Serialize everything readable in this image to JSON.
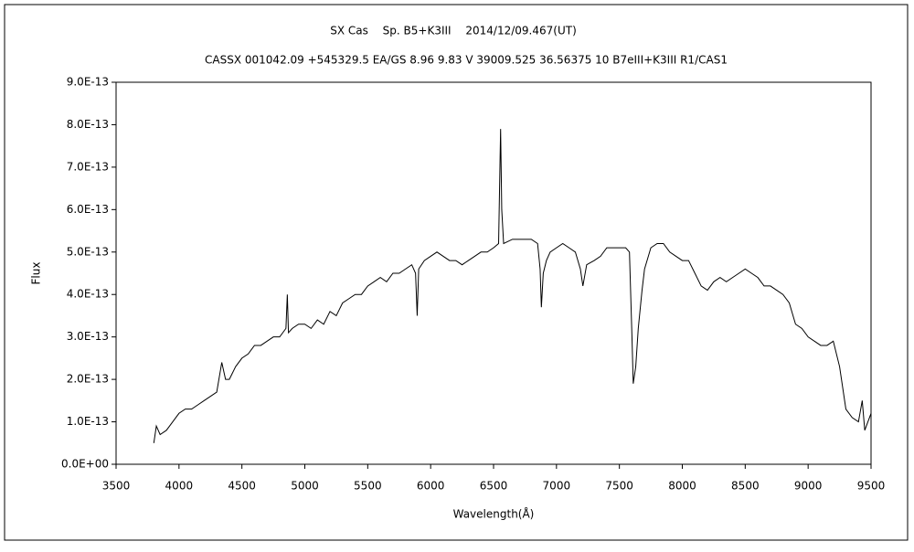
{
  "chart_data": {
    "type": "line",
    "title": "SX Cas　 Sp. B5+K3III　 2014/12/09.467(UT)",
    "subtitle": "CASSX 001042.09 +545329.5 EA/GS 8.96 9.83 V 39009.525 36.56375 10 B7eIII+K3III R1/CAS1",
    "xlabel": "Wavelength(Å)",
    "ylabel": "Flux",
    "xlim": [
      3500,
      9500
    ],
    "xticks": [
      3500,
      4000,
      4500,
      5000,
      5500,
      6000,
      6500,
      7000,
      7500,
      8000,
      8500,
      9000,
      9500
    ],
    "ylim": [
      0,
      9e-13
    ],
    "yticks": [
      {
        "value": 0,
        "label": "0.0E+00"
      },
      {
        "value": 1e-13,
        "label": "1.0E-13"
      },
      {
        "value": 2e-13,
        "label": "2.0E-13"
      },
      {
        "value": 3e-13,
        "label": "3.0E-13"
      },
      {
        "value": 4e-13,
        "label": "4.0E-13"
      },
      {
        "value": 5e-13,
        "label": "5.0E-13"
      },
      {
        "value": 6e-13,
        "label": "6.0E-13"
      },
      {
        "value": 7e-13,
        "label": "7.0E-13"
      },
      {
        "value": 8e-13,
        "label": "8.0E-13"
      },
      {
        "value": 9e-13,
        "label": "9.0E-13"
      }
    ],
    "grid": false,
    "color": "#000000",
    "x": [
      3800,
      3820,
      3850,
      3900,
      3950,
      4000,
      4050,
      4100,
      4150,
      4200,
      4250,
      4300,
      4340,
      4370,
      4400,
      4450,
      4500,
      4550,
      4600,
      4650,
      4700,
      4750,
      4800,
      4850,
      4861,
      4870,
      4900,
      4950,
      5000,
      5050,
      5100,
      5150,
      5200,
      5250,
      5300,
      5350,
      5400,
      5450,
      5500,
      5550,
      5600,
      5650,
      5700,
      5750,
      5800,
      5850,
      5880,
      5893,
      5905,
      5950,
      6000,
      6050,
      6100,
      6150,
      6200,
      6250,
      6300,
      6350,
      6400,
      6450,
      6500,
      6540,
      6556,
      6565,
      6580,
      6650,
      6700,
      6750,
      6800,
      6850,
      6870,
      6880,
      6895,
      6920,
      6950,
      7000,
      7050,
      7100,
      7150,
      7190,
      7210,
      7240,
      7300,
      7350,
      7400,
      7450,
      7500,
      7550,
      7580,
      7600,
      7610,
      7630,
      7650,
      7680,
      7700,
      7750,
      7800,
      7850,
      7900,
      7950,
      8000,
      8050,
      8100,
      8150,
      8200,
      8250,
      8300,
      8350,
      8400,
      8450,
      8500,
      8550,
      8600,
      8650,
      8700,
      8750,
      8800,
      8850,
      8900,
      8950,
      9000,
      9050,
      9100,
      9150,
      9200,
      9250,
      9300,
      9350,
      9400,
      9430,
      9450,
      9500
    ],
    "values": [
      5e-14,
      9e-14,
      7e-14,
      8e-14,
      1e-13,
      1.2e-13,
      1.3e-13,
      1.3e-13,
      1.4e-13,
      1.5e-13,
      1.6e-13,
      1.7e-13,
      2.4e-13,
      2e-13,
      2e-13,
      2.3e-13,
      2.5e-13,
      2.6e-13,
      2.8e-13,
      2.8e-13,
      2.9e-13,
      3e-13,
      3e-13,
      3.2e-13,
      4e-13,
      3.1e-13,
      3.2e-13,
      3.3e-13,
      3.3e-13,
      3.2e-13,
      3.4e-13,
      3.3e-13,
      3.6e-13,
      3.5e-13,
      3.8e-13,
      3.9e-13,
      4e-13,
      4e-13,
      4.2e-13,
      4.3e-13,
      4.4e-13,
      4.3e-13,
      4.5e-13,
      4.5e-13,
      4.6e-13,
      4.7e-13,
      4.5e-13,
      3.5e-13,
      4.6e-13,
      4.8e-13,
      4.9e-13,
      5e-13,
      4.9e-13,
      4.8e-13,
      4.8e-13,
      4.7e-13,
      4.8e-13,
      4.9e-13,
      5e-13,
      5e-13,
      5.1e-13,
      5.2e-13,
      7.9e-13,
      6e-13,
      5.2e-13,
      5.3e-13,
      5.3e-13,
      5.3e-13,
      5.3e-13,
      5.2e-13,
      4.6e-13,
      3.7e-13,
      4.5e-13,
      4.8e-13,
      5e-13,
      5.1e-13,
      5.2e-13,
      5.1e-13,
      5e-13,
      4.6e-13,
      4.2e-13,
      4.7e-13,
      4.8e-13,
      4.9e-13,
      5.1e-13,
      5.1e-13,
      5.1e-13,
      5.1e-13,
      5e-13,
      3e-13,
      1.9e-13,
      2.3e-13,
      3.2e-13,
      4.1e-13,
      4.6e-13,
      5.1e-13,
      5.2e-13,
      5.2e-13,
      5e-13,
      4.9e-13,
      4.8e-13,
      4.8e-13,
      4.5e-13,
      4.2e-13,
      4.1e-13,
      4.3e-13,
      4.4e-13,
      4.3e-13,
      4.4e-13,
      4.5e-13,
      4.6e-13,
      4.5e-13,
      4.4e-13,
      4.2e-13,
      4.2e-13,
      4.1e-13,
      4e-13,
      3.8e-13,
      3.3e-13,
      3.2e-13,
      3e-13,
      2.9e-13,
      2.8e-13,
      2.8e-13,
      2.9e-13,
      2.3e-13,
      1.3e-13,
      1.1e-13,
      1e-13,
      1.5e-13,
      8e-14,
      1.2e-13
    ]
  }
}
